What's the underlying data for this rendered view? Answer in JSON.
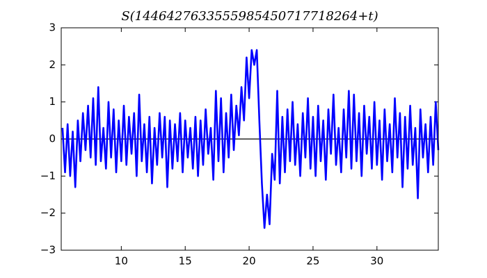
{
  "chart_data": {
    "type": "line",
    "title": "S(1446427633555985450717718264+t)",
    "x": [
      5.4,
      5.6,
      5.8,
      6.0,
      6.2,
      6.4,
      6.6,
      6.8,
      7.0,
      7.2,
      7.4,
      7.6,
      7.8,
      8.0,
      8.2,
      8.4,
      8.6,
      8.8,
      9.0,
      9.2,
      9.4,
      9.6,
      9.8,
      10.0,
      10.2,
      10.4,
      10.6,
      10.8,
      11.0,
      11.2,
      11.4,
      11.6,
      11.8,
      12.0,
      12.2,
      12.4,
      12.6,
      12.8,
      13.0,
      13.2,
      13.4,
      13.6,
      13.8,
      14.0,
      14.2,
      14.4,
      14.6,
      14.8,
      15.0,
      15.2,
      15.4,
      15.6,
      15.8,
      16.0,
      16.2,
      16.4,
      16.6,
      16.8,
      17.0,
      17.2,
      17.4,
      17.6,
      17.8,
      18.0,
      18.2,
      18.4,
      18.6,
      18.8,
      19.0,
      19.2,
      19.4,
      19.6,
      19.8,
      20.0,
      20.2,
      20.4,
      20.6,
      20.8,
      21.0,
      21.2,
      21.4,
      21.6,
      21.8,
      22.0,
      22.2,
      22.4,
      22.6,
      22.8,
      23.0,
      23.2,
      23.4,
      23.6,
      23.8,
      24.0,
      24.2,
      24.4,
      24.6,
      24.8,
      25.0,
      25.2,
      25.4,
      25.6,
      25.8,
      26.0,
      26.2,
      26.4,
      26.6,
      26.8,
      27.0,
      27.2,
      27.4,
      27.6,
      27.8,
      28.0,
      28.2,
      28.4,
      28.6,
      28.8,
      29.0,
      29.2,
      29.4,
      29.6,
      29.8,
      30.0,
      30.2,
      30.4,
      30.6,
      30.8,
      31.0,
      31.2,
      31.4,
      31.6,
      31.8,
      32.0,
      32.2,
      32.4,
      32.6,
      32.8,
      33.0,
      33.2,
      33.4,
      33.6,
      33.8,
      34.0,
      34.2,
      34.4,
      34.6,
      34.8
    ],
    "series": [
      {
        "color": "#0000ff",
        "values": [
          0.3,
          -0.9,
          0.4,
          -1.0,
          0.2,
          -1.3,
          0.5,
          -0.6,
          0.7,
          -0.3,
          0.9,
          -0.5,
          1.1,
          -0.7,
          1.4,
          -0.6,
          0.3,
          -0.8,
          1.0,
          -0.5,
          0.8,
          -0.9,
          0.5,
          -0.6,
          0.9,
          -0.7,
          0.6,
          -0.4,
          0.7,
          -1.0,
          1.2,
          -0.6,
          0.4,
          -0.9,
          0.6,
          -1.2,
          0.3,
          -0.7,
          0.7,
          -0.5,
          0.6,
          -1.3,
          0.5,
          -0.8,
          0.4,
          -0.6,
          0.7,
          -0.9,
          0.5,
          -0.5,
          0.3,
          -0.8,
          0.6,
          -1.0,
          0.5,
          -0.7,
          0.8,
          -0.4,
          0.3,
          -1.1,
          1.3,
          -0.6,
          1.1,
          -0.9,
          0.7,
          -0.5,
          1.2,
          -0.3,
          0.9,
          0.1,
          1.4,
          0.5,
          2.2,
          1.1,
          2.4,
          2.0,
          2.4,
          0.5,
          -1.2,
          -2.4,
          -1.5,
          -2.3,
          -0.4,
          -1.1,
          1.3,
          -1.2,
          0.6,
          -0.9,
          0.8,
          -0.6,
          1.0,
          -0.7,
          0.4,
          -1.0,
          0.7,
          -0.5,
          1.1,
          -0.8,
          0.6,
          -1.0,
          0.9,
          -0.6,
          0.5,
          -1.1,
          0.8,
          -0.4,
          1.2,
          -0.7,
          0.3,
          -0.9,
          0.8,
          -0.5,
          1.3,
          -0.8,
          1.2,
          -0.6,
          0.7,
          -1.0,
          0.9,
          -0.4,
          0.6,
          -0.8,
          1.0,
          -0.7,
          0.5,
          -1.1,
          0.8,
          -0.6,
          0.4,
          -0.9,
          1.1,
          -0.5,
          0.7,
          -1.3,
          0.6,
          -0.8,
          0.9,
          -0.7,
          0.3,
          -1.6,
          0.8,
          -0.5,
          0.4,
          -0.9,
          0.6,
          -0.7,
          1.0,
          -0.3
        ]
      }
    ],
    "hline": {
      "value": 0,
      "color": "#000000"
    },
    "xlim": [
      5.3,
      34.8
    ],
    "ylim": [
      -3,
      3
    ],
    "xticks": [
      10,
      15,
      20,
      25,
      30
    ],
    "yticks": [
      {
        "value": -3,
        "label": "−3"
      },
      {
        "value": -2,
        "label": "−2"
      },
      {
        "value": -1,
        "label": "−1"
      },
      0,
      1,
      2,
      3
    ]
  }
}
